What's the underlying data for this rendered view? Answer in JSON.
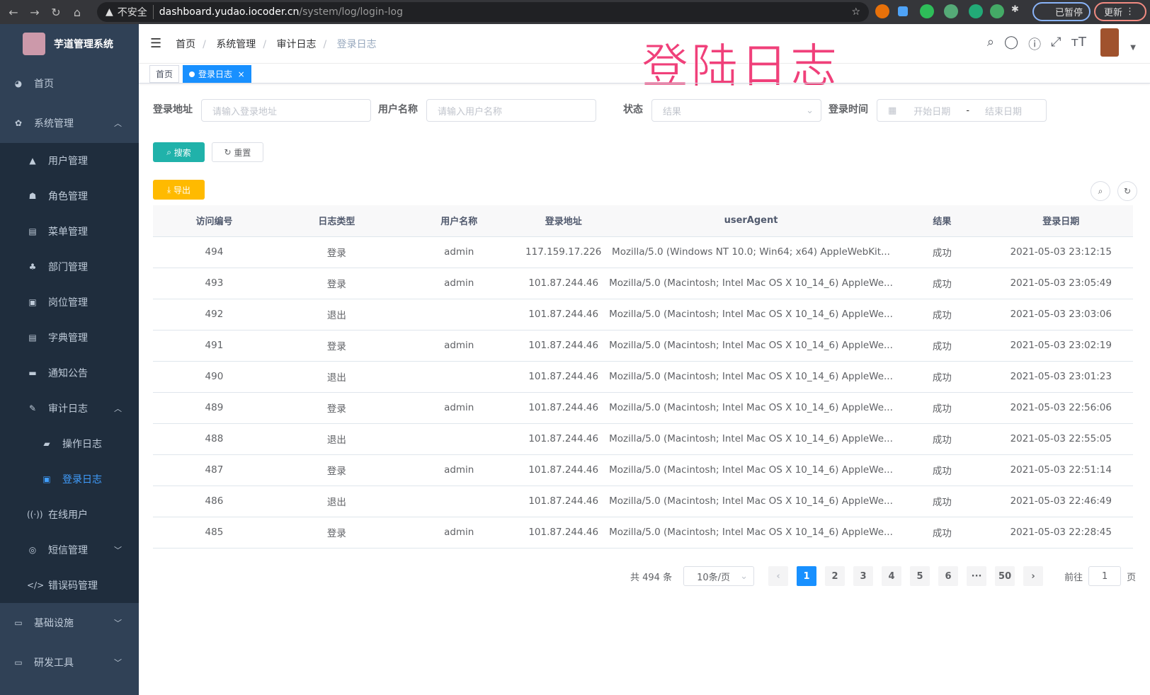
{
  "browser": {
    "warning": "不安全",
    "host": "dashboard.yudao.iocoder.cn",
    "path": "/system/log/login-log",
    "profile": "已暂停",
    "update": "更新"
  },
  "annotation": "登陆日志",
  "sidebar": {
    "title": "芋道管理系统",
    "items": [
      {
        "label": "首页",
        "icon": "dashboard-icon"
      },
      {
        "label": "系统管理",
        "icon": "gear-icon",
        "expanded": true
      },
      {
        "label": "用户管理",
        "icon": "user-icon"
      },
      {
        "label": "角色管理",
        "icon": "peoples-icon"
      },
      {
        "label": "菜单管理",
        "icon": "tree-table-icon"
      },
      {
        "label": "部门管理",
        "icon": "tree-icon"
      },
      {
        "label": "岗位管理",
        "icon": "post-icon"
      },
      {
        "label": "字典管理",
        "icon": "dict-icon"
      },
      {
        "label": "通知公告",
        "icon": "message-icon"
      },
      {
        "label": "审计日志",
        "icon": "log-icon",
        "expanded": true
      },
      {
        "label": "操作日志",
        "icon": "form-icon"
      },
      {
        "label": "登录日志",
        "icon": "logininfor-icon",
        "active": true
      },
      {
        "label": "在线用户",
        "icon": "online-icon"
      },
      {
        "label": "短信管理",
        "icon": "validcode-icon"
      },
      {
        "label": "错误码管理",
        "icon": "code-icon"
      },
      {
        "label": "基础设施",
        "icon": "monitor-icon"
      },
      {
        "label": "研发工具",
        "icon": "tool-icon"
      }
    ]
  },
  "header": {
    "breadcrumb": [
      "首页",
      "系统管理",
      "审计日志",
      "登录日志"
    ]
  },
  "tags": {
    "home": "首页",
    "current": "登录日志"
  },
  "filters": {
    "ip_label": "登录地址",
    "ip_placeholder": "请输入登录地址",
    "user_label": "用户名称",
    "user_placeholder": "请输入用户名称",
    "status_label": "状态",
    "status_placeholder": "结果",
    "time_label": "登录时间",
    "start_placeholder": "开始日期",
    "sep": "-",
    "end_placeholder": "结束日期",
    "search": "搜索",
    "reset": "重置",
    "export": "导出"
  },
  "accent": "#1890ff",
  "table": {
    "columns": [
      "访问编号",
      "日志类型",
      "用户名称",
      "登录地址",
      "userAgent",
      "结果",
      "登录日期"
    ],
    "rows": [
      [
        "494",
        "登录",
        "admin",
        "117.159.17.226",
        "Mozilla/5.0 (Windows NT 10.0; Win64; x64) AppleWebKit...",
        "成功",
        "2021-05-03 23:12:15"
      ],
      [
        "493",
        "登录",
        "admin",
        "101.87.244.46",
        "Mozilla/5.0 (Macintosh; Intel Mac OS X 10_14_6) AppleWe...",
        "成功",
        "2021-05-03 23:05:49"
      ],
      [
        "492",
        "退出",
        "",
        "101.87.244.46",
        "Mozilla/5.0 (Macintosh; Intel Mac OS X 10_14_6) AppleWe...",
        "成功",
        "2021-05-03 23:03:06"
      ],
      [
        "491",
        "登录",
        "admin",
        "101.87.244.46",
        "Mozilla/5.0 (Macintosh; Intel Mac OS X 10_14_6) AppleWe...",
        "成功",
        "2021-05-03 23:02:19"
      ],
      [
        "490",
        "退出",
        "",
        "101.87.244.46",
        "Mozilla/5.0 (Macintosh; Intel Mac OS X 10_14_6) AppleWe...",
        "成功",
        "2021-05-03 23:01:23"
      ],
      [
        "489",
        "登录",
        "admin",
        "101.87.244.46",
        "Mozilla/5.0 (Macintosh; Intel Mac OS X 10_14_6) AppleWe...",
        "成功",
        "2021-05-03 22:56:06"
      ],
      [
        "488",
        "退出",
        "",
        "101.87.244.46",
        "Mozilla/5.0 (Macintosh; Intel Mac OS X 10_14_6) AppleWe...",
        "成功",
        "2021-05-03 22:55:05"
      ],
      [
        "487",
        "登录",
        "admin",
        "101.87.244.46",
        "Mozilla/5.0 (Macintosh; Intel Mac OS X 10_14_6) AppleWe...",
        "成功",
        "2021-05-03 22:51:14"
      ],
      [
        "486",
        "退出",
        "",
        "101.87.244.46",
        "Mozilla/5.0 (Macintosh; Intel Mac OS X 10_14_6) AppleWe...",
        "成功",
        "2021-05-03 22:46:49"
      ],
      [
        "485",
        "登录",
        "admin",
        "101.87.244.46",
        "Mozilla/5.0 (Macintosh; Intel Mac OS X 10_14_6) AppleWe...",
        "成功",
        "2021-05-03 22:28:45"
      ]
    ]
  },
  "pagination": {
    "total": "共 494 条",
    "size": "10条/页",
    "pages": [
      "1",
      "2",
      "3",
      "4",
      "5",
      "6",
      "···",
      "50"
    ],
    "current": "1",
    "goto_prefix": "前往",
    "goto_value": "1",
    "goto_suffix": "页"
  }
}
